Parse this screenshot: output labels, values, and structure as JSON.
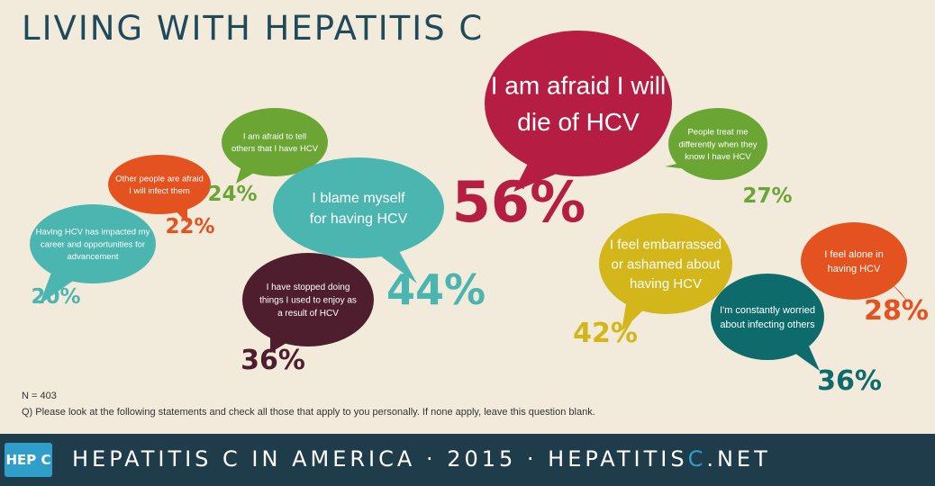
{
  "title": "LIVING WITH HEPATITIS C",
  "footnote": {
    "n": "N = 403",
    "question": "Q) Please look at the following statements and check all those that apply to you personally. If none apply, leave this question blank."
  },
  "footer": {
    "logo": "HEP C",
    "text_main": "HEPATITIS C IN AMERICA · 2015 · HEPATITIS",
    "text_accent": "C",
    "text_end": ".NET"
  },
  "colors": {
    "teal": "#4bb5b0",
    "orange": "#e4521f",
    "green": "#6ba534",
    "crimson": "#b51e42",
    "plum": "#4f1e2e",
    "mustard": "#d3b61a",
    "darkteal": "#0d6b6b",
    "ink": "#1f4a5c"
  },
  "chart_data": {
    "type": "bubble",
    "categories": [
      "Having HCV has impacted my career and opportunities for advancement",
      "Other people are afraid I will infect them",
      "I am afraid to tell others that I have HCV",
      "I blame myself for having HCV",
      "I have stopped doing things I used to enjoy as a result of HCV",
      "I am afraid I will die of HCV",
      "People treat me differently when they know I have HCV",
      "I feel embarrassed or ashamed about having HCV",
      "I'm constantly worried about infecting others",
      "I feel alone in having HCV"
    ],
    "values": [
      20,
      22,
      24,
      44,
      36,
      56,
      27,
      42,
      36,
      28
    ],
    "value_labels": [
      "20%",
      "22%",
      "24%",
      "44%",
      "36%",
      "56%",
      "27%",
      "42%",
      "36%",
      "28%"
    ],
    "label_lines": [
      [
        "Having HCV has impacted my",
        "career and opportunities for",
        "advancement"
      ],
      [
        "Other people are afraid",
        "I will infect them"
      ],
      [
        "I am afraid to tell",
        "others that I have HCV"
      ],
      [
        "I blame myself",
        "for having HCV"
      ],
      [
        "I have stopped doing",
        "things I used to enjoy as",
        "a result of HCV"
      ],
      [
        "I am afraid I will",
        "die of HCV"
      ],
      [
        "People treat me",
        "differently when they",
        "know I have HCV"
      ],
      [
        "I feel embarrassed",
        "or ashamed about",
        "having HCV"
      ],
      [
        "I'm constantly worried",
        "about infecting others"
      ],
      [
        "I feel alone in",
        "having HCV"
      ]
    ],
    "bubble_colors": [
      "teal",
      "orange",
      "green",
      "teal",
      "plum",
      "crimson",
      "green",
      "mustard",
      "darkteal",
      "orange"
    ]
  }
}
